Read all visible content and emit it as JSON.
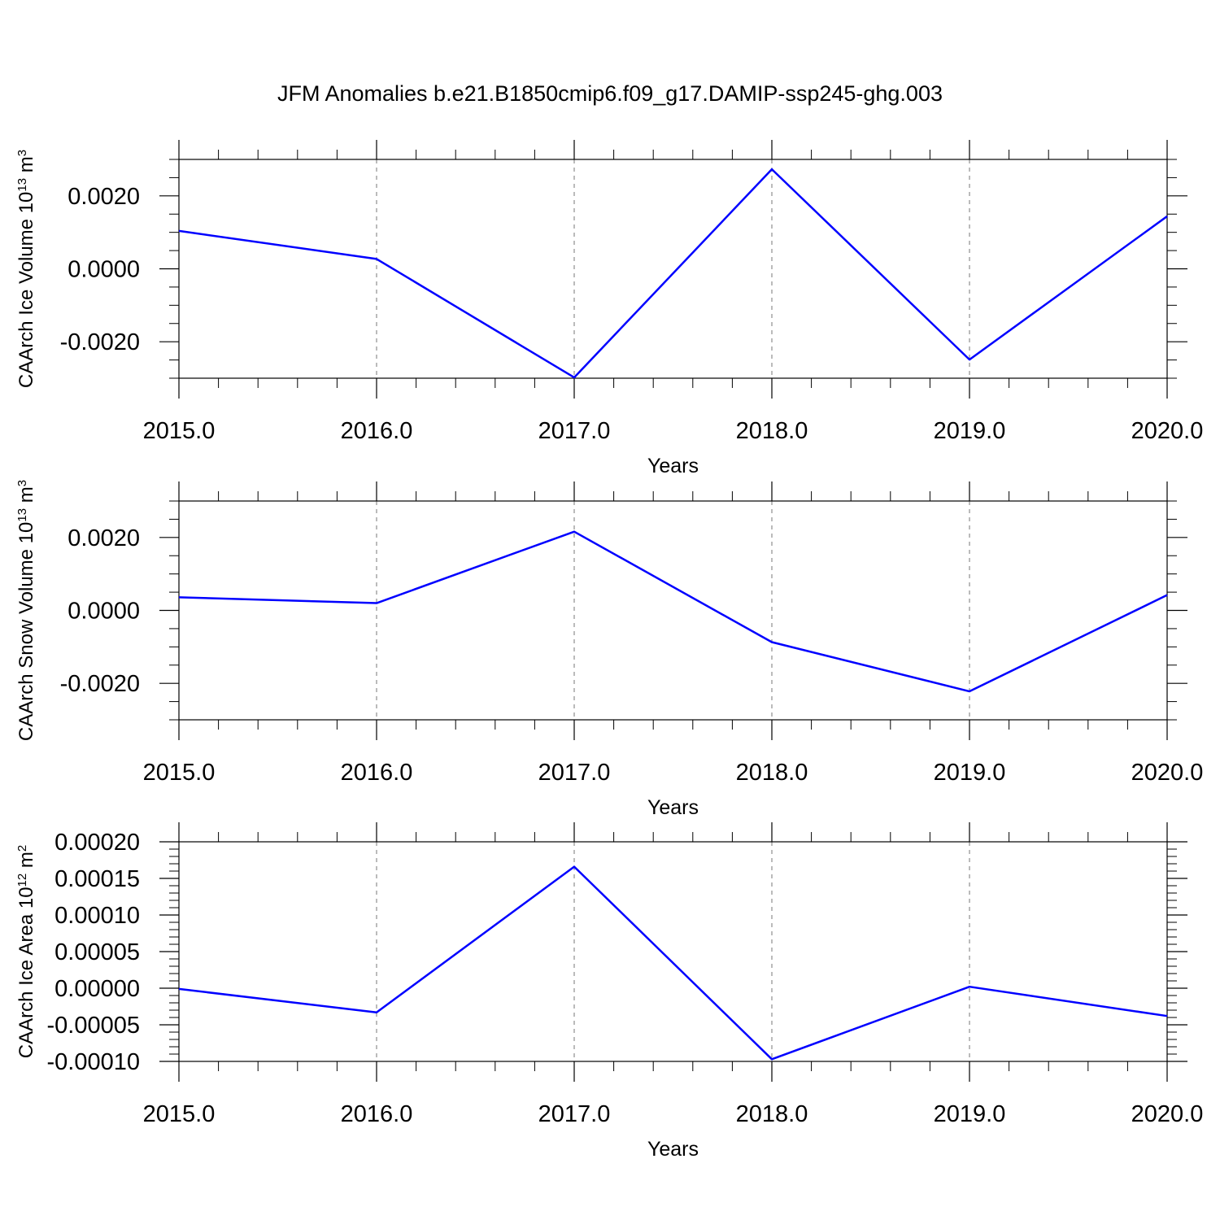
{
  "title": "JFM Anomalies b.e21.B1850cmip6.f09_g17.DAMIP-ssp245-ghg.003",
  "chart_data": [
    {
      "type": "line",
      "ylabel_parts": [
        "CAArch Ice Volume 10",
        "13",
        " m",
        "3"
      ],
      "xlabel": "Years",
      "x": [
        2015,
        2016,
        2017,
        2018,
        2019,
        2020
      ],
      "series": [
        {
          "color": "#0000ff",
          "values": [
            0.00104,
            0.00027,
            -0.00298,
            0.00273,
            -0.00249,
            0.00144
          ]
        }
      ],
      "xlim": [
        2015,
        2020
      ],
      "xticks": [
        {
          "value": 2015,
          "label": "2015.0"
        },
        {
          "value": 2016,
          "label": "2016.0"
        },
        {
          "value": 2017,
          "label": "2017.0"
        },
        {
          "value": 2018,
          "label": "2018.0"
        },
        {
          "value": 2019,
          "label": "2019.0"
        },
        {
          "value": 2020,
          "label": "2020.0"
        }
      ],
      "xminorticks": [
        2015.2,
        2015.4,
        2015.6,
        2015.8,
        2016.2,
        2016.4,
        2016.6,
        2016.8,
        2017.2,
        2017.4,
        2017.6,
        2017.8,
        2018.2,
        2018.4,
        2018.6,
        2018.8,
        2019.2,
        2019.4,
        2019.6,
        2019.8
      ],
      "ylim": [
        -0.003,
        0.003
      ],
      "yticks": [
        {
          "value": -0.002,
          "label": "-0.0020"
        },
        {
          "value": 0,
          "label": "0.0000"
        },
        {
          "value": 0.002,
          "label": "0.0020"
        }
      ],
      "yminorticks": [
        -0.003,
        -0.0025,
        -0.0015,
        -0.001,
        -0.0005,
        0.0005,
        0.001,
        0.0015,
        0.0025,
        0.003
      ],
      "grid": true
    },
    {
      "type": "line",
      "ylabel_parts": [
        "CAArch Snow Volume 10",
        "13",
        " m",
        "3"
      ],
      "xlabel": "Years",
      "x": [
        2015,
        2016,
        2017,
        2018,
        2019,
        2020
      ],
      "series": [
        {
          "color": "#0000ff",
          "values": [
            0.00036,
            0.0002,
            0.00216,
            -0.00087,
            -0.00222,
            0.00042
          ]
        }
      ],
      "xlim": [
        2015,
        2020
      ],
      "xticks": [
        {
          "value": 2015,
          "label": "2015.0"
        },
        {
          "value": 2016,
          "label": "2016.0"
        },
        {
          "value": 2017,
          "label": "2017.0"
        },
        {
          "value": 2018,
          "label": "2018.0"
        },
        {
          "value": 2019,
          "label": "2019.0"
        },
        {
          "value": 2020,
          "label": "2020.0"
        }
      ],
      "xminorticks": [
        2015.2,
        2015.4,
        2015.6,
        2015.8,
        2016.2,
        2016.4,
        2016.6,
        2016.8,
        2017.2,
        2017.4,
        2017.6,
        2017.8,
        2018.2,
        2018.4,
        2018.6,
        2018.8,
        2019.2,
        2019.4,
        2019.6,
        2019.8
      ],
      "ylim": [
        -0.003,
        0.003
      ],
      "yticks": [
        {
          "value": -0.002,
          "label": "-0.0020"
        },
        {
          "value": 0,
          "label": "0.0000"
        },
        {
          "value": 0.002,
          "label": "0.0020"
        }
      ],
      "yminorticks": [
        -0.003,
        -0.0025,
        -0.0015,
        -0.001,
        -0.0005,
        0.0005,
        0.001,
        0.0015,
        0.0025,
        0.003
      ],
      "grid": true
    },
    {
      "type": "line",
      "ylabel_parts": [
        "CAArch Ice Area 10",
        "12",
        " m",
        "2"
      ],
      "xlabel": "Years",
      "x": [
        2015,
        2016,
        2017,
        2018,
        2019,
        2020
      ],
      "series": [
        {
          "color": "#0000ff",
          "values": [
            -1e-06,
            -3.3e-05,
            0.000166,
            -9.7e-05,
            2e-06,
            -3.8e-05
          ]
        }
      ],
      "xlim": [
        2015,
        2020
      ],
      "xticks": [
        {
          "value": 2015,
          "label": "2015.0"
        },
        {
          "value": 2016,
          "label": "2016.0"
        },
        {
          "value": 2017,
          "label": "2017.0"
        },
        {
          "value": 2018,
          "label": "2018.0"
        },
        {
          "value": 2019,
          "label": "2019.0"
        },
        {
          "value": 2020,
          "label": "2020.0"
        }
      ],
      "xminorticks": [
        2015.2,
        2015.4,
        2015.6,
        2015.8,
        2016.2,
        2016.4,
        2016.6,
        2016.8,
        2017.2,
        2017.4,
        2017.6,
        2017.8,
        2018.2,
        2018.4,
        2018.6,
        2018.8,
        2019.2,
        2019.4,
        2019.6,
        2019.8
      ],
      "ylim": [
        -0.0001,
        0.0002
      ],
      "yticks": [
        {
          "value": -0.0001,
          "label": "-0.00010"
        },
        {
          "value": -5e-05,
          "label": "-0.00005"
        },
        {
          "value": 0,
          "label": "0.00000"
        },
        {
          "value": 5e-05,
          "label": "0.00005"
        },
        {
          "value": 0.0001,
          "label": "0.00010"
        },
        {
          "value": 0.00015,
          "label": "0.00015"
        },
        {
          "value": 0.0002,
          "label": "0.00020"
        }
      ],
      "yminorticks": [
        -9e-05,
        -8e-05,
        -7e-05,
        -6e-05,
        -4e-05,
        -3e-05,
        -2e-05,
        -1e-05,
        1e-05,
        2e-05,
        3e-05,
        4e-05,
        6e-05,
        7e-05,
        8e-05,
        9e-05,
        0.00011,
        0.00012,
        0.00013,
        0.00014,
        0.00016,
        0.00017,
        0.00018,
        0.00019
      ],
      "grid": true
    }
  ]
}
